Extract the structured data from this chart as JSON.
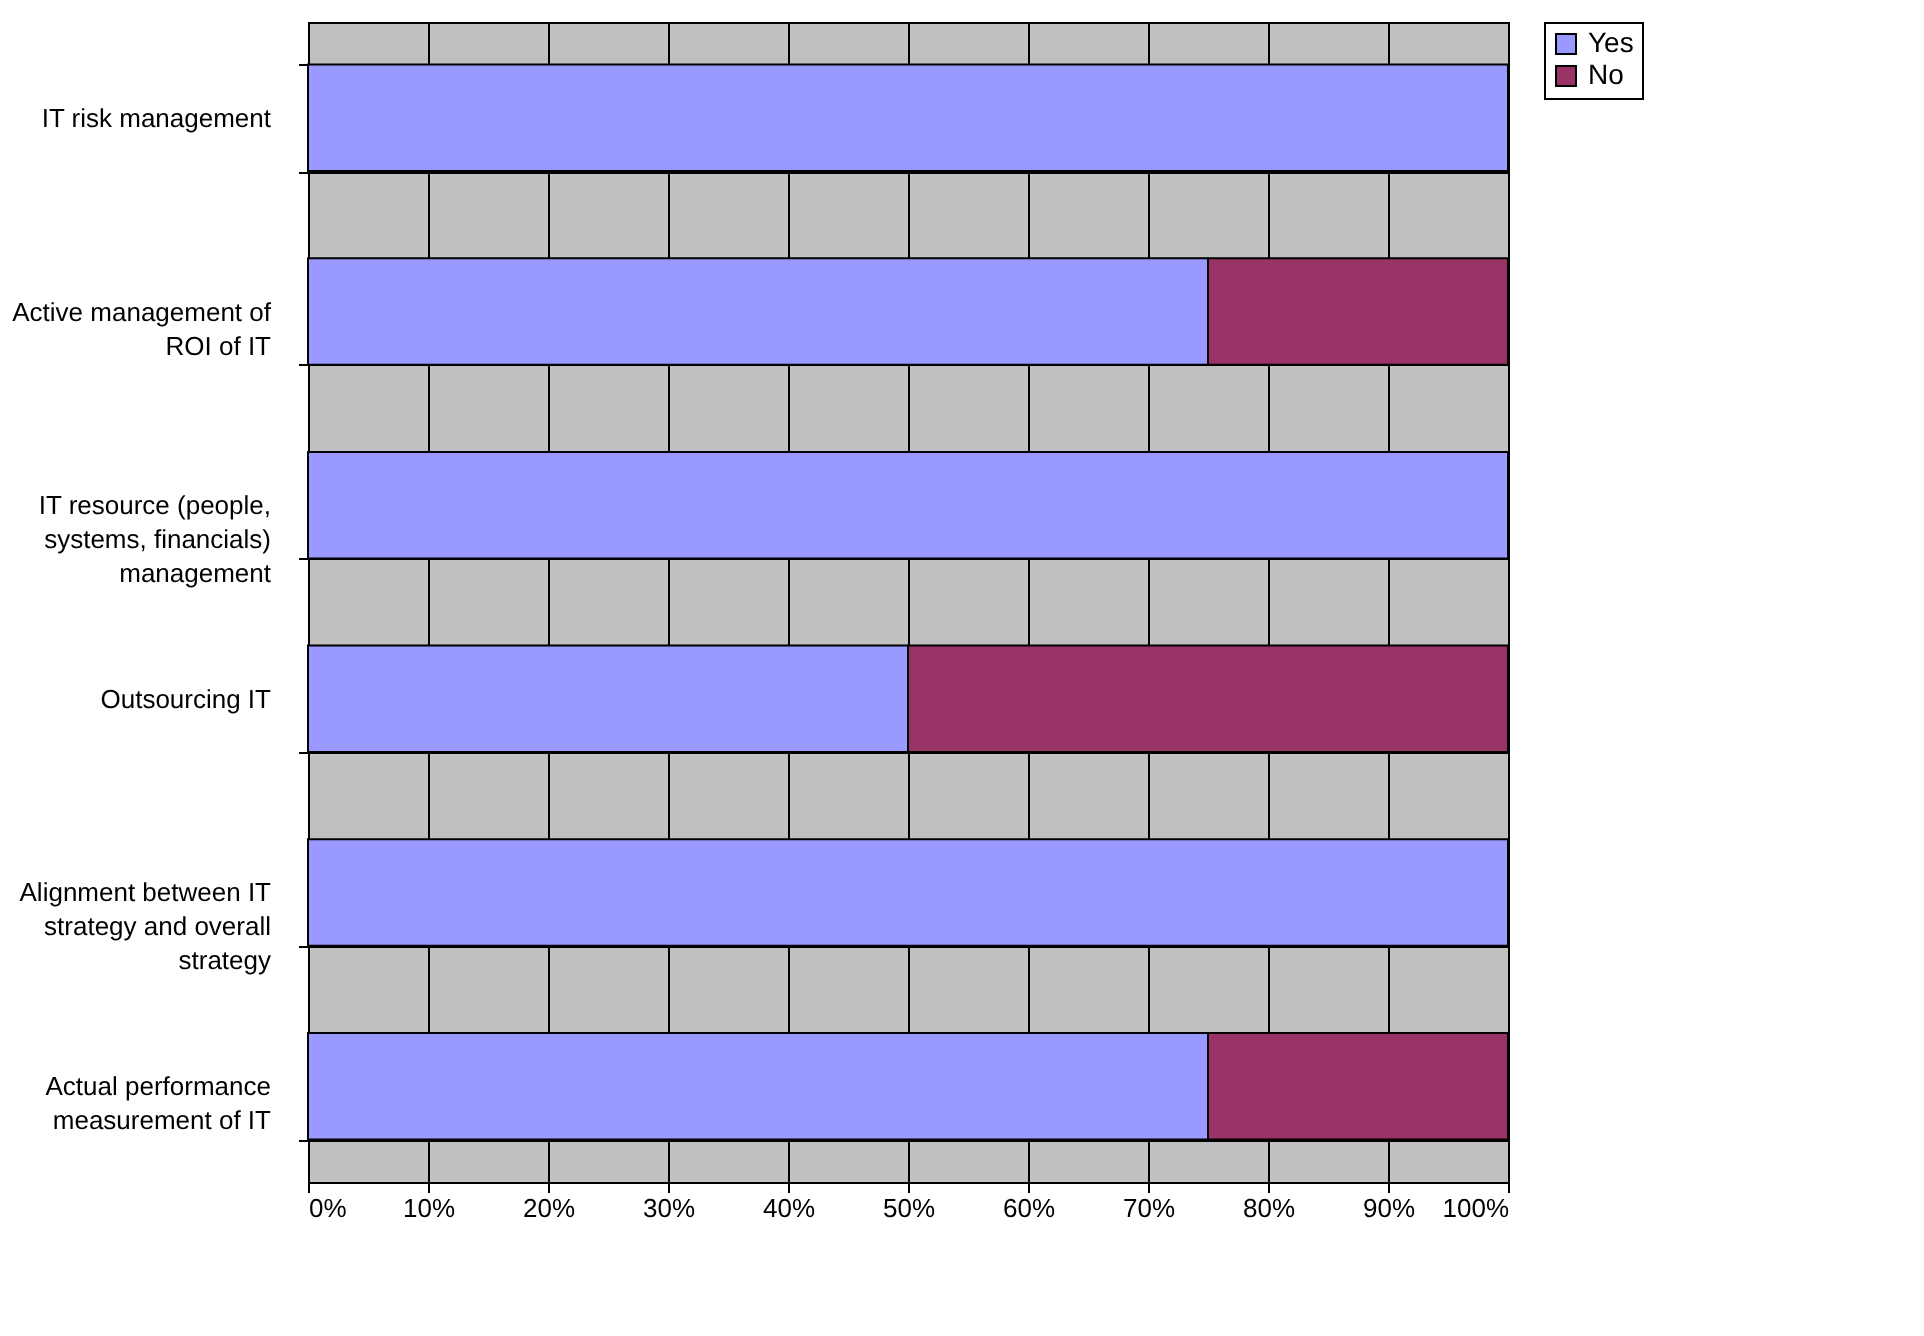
{
  "chart_data": {
    "type": "bar",
    "orientation": "horizontal",
    "stacked": true,
    "categories": [
      "IT risk management",
      "Active management of ROI of IT",
      "IT resource (people, systems, financials) management",
      "Outsourcing IT",
      "Alignment between IT strategy and overall strategy",
      "Actual performance measurement of IT"
    ],
    "series": [
      {
        "name": "Yes",
        "color": "#9999ff",
        "values": [
          100,
          75,
          100,
          50,
          100,
          75
        ]
      },
      {
        "name": "No",
        "color": "#993366",
        "values": [
          0,
          25,
          0,
          50,
          0,
          25
        ]
      }
    ],
    "xlim": [
      0,
      100
    ],
    "xticks": [
      {
        "value": 0,
        "label": "0%"
      },
      {
        "value": 10,
        "label": "10%"
      },
      {
        "value": 20,
        "label": "20%"
      },
      {
        "value": 30,
        "label": "30%"
      },
      {
        "value": 40,
        "label": "40%"
      },
      {
        "value": 50,
        "label": "50%"
      },
      {
        "value": 60,
        "label": "60%"
      },
      {
        "value": 70,
        "label": "70%"
      },
      {
        "value": 80,
        "label": "80%"
      },
      {
        "value": 90,
        "label": "90%"
      },
      {
        "value": 100,
        "label": "100%"
      }
    ],
    "grid": true,
    "legend": "right"
  }
}
